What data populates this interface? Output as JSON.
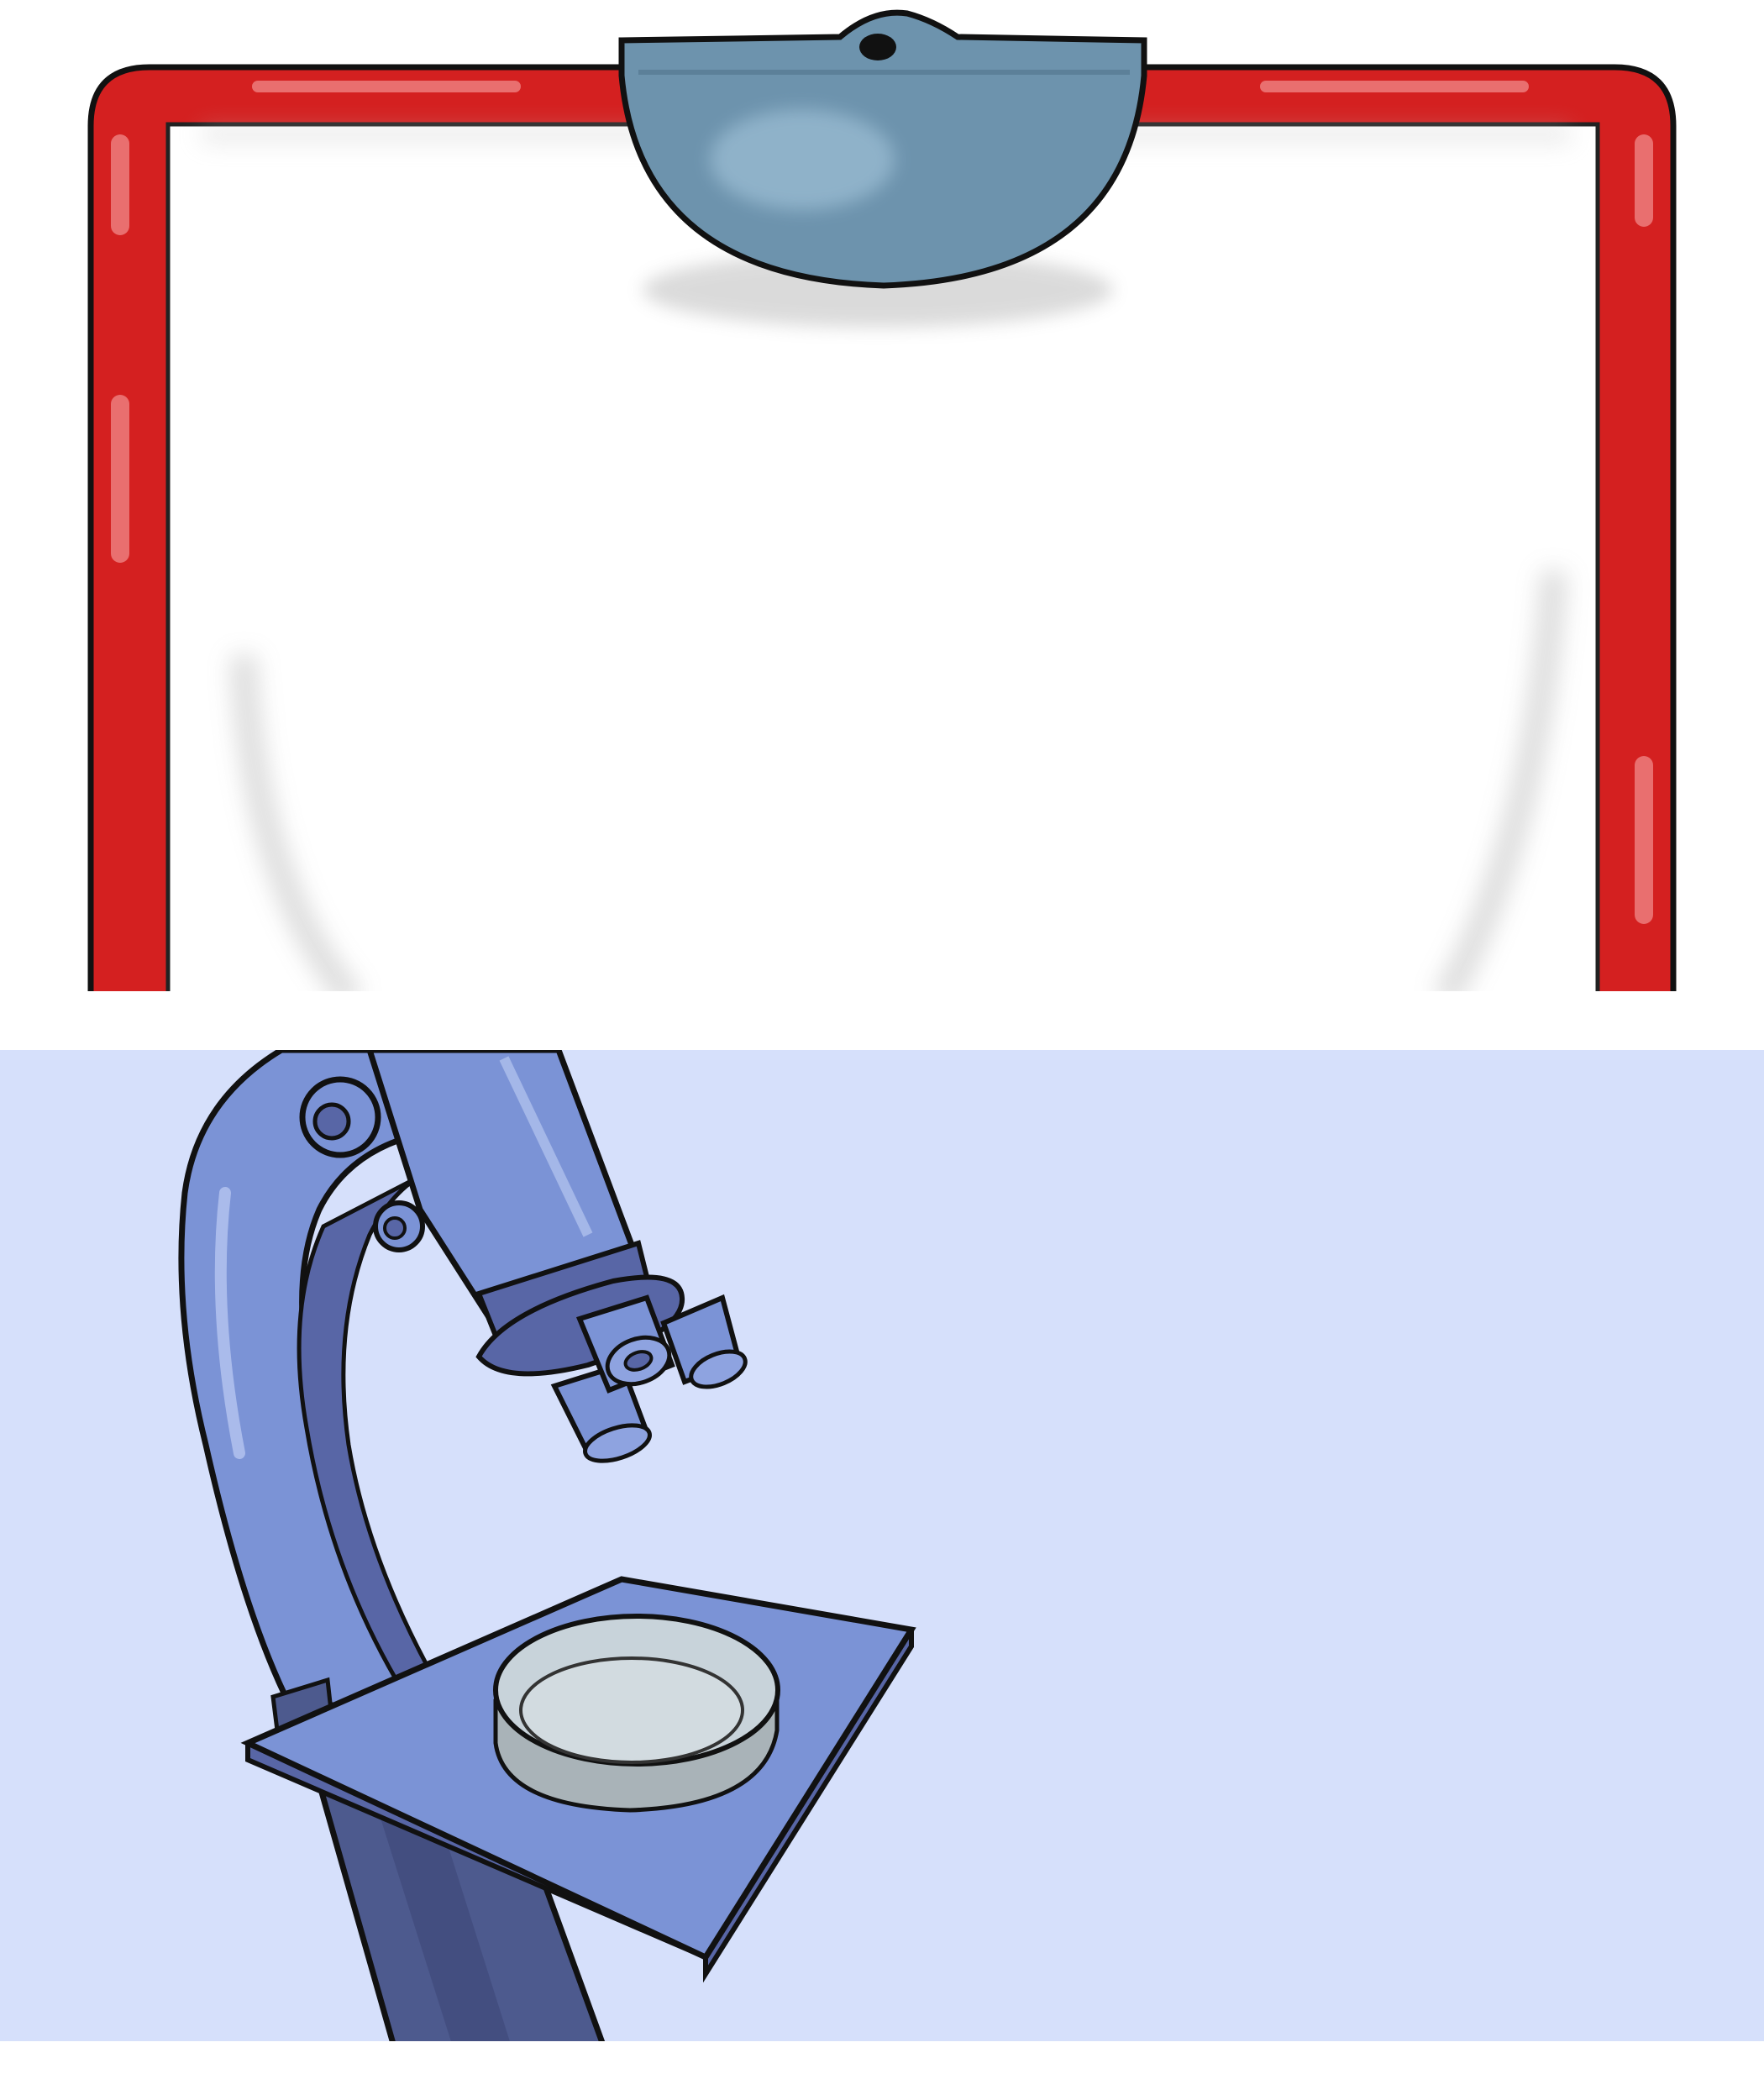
{
  "colors": {
    "page_background": "#ffffff",
    "clipboard_frame": "#d42020",
    "clipboard_frame_highlight": "#f08a8a",
    "clipboard_paper": "#ffffff",
    "clip_metal": "#6d93ad",
    "clip_highlight": "#9ec0d6",
    "lower_panel_background": "#d6e0fb",
    "microscope_body": "#7b93d6",
    "microscope_dark": "#5866a6",
    "microscope_shadow": "#404a78",
    "petri_dish": "#c8d3da",
    "outline": "#111111"
  },
  "icons": {
    "clipboard": "clipboard-icon",
    "clip": "clip-icon",
    "microscope": "microscope-icon",
    "petri_dish": "petri-dish-icon"
  }
}
